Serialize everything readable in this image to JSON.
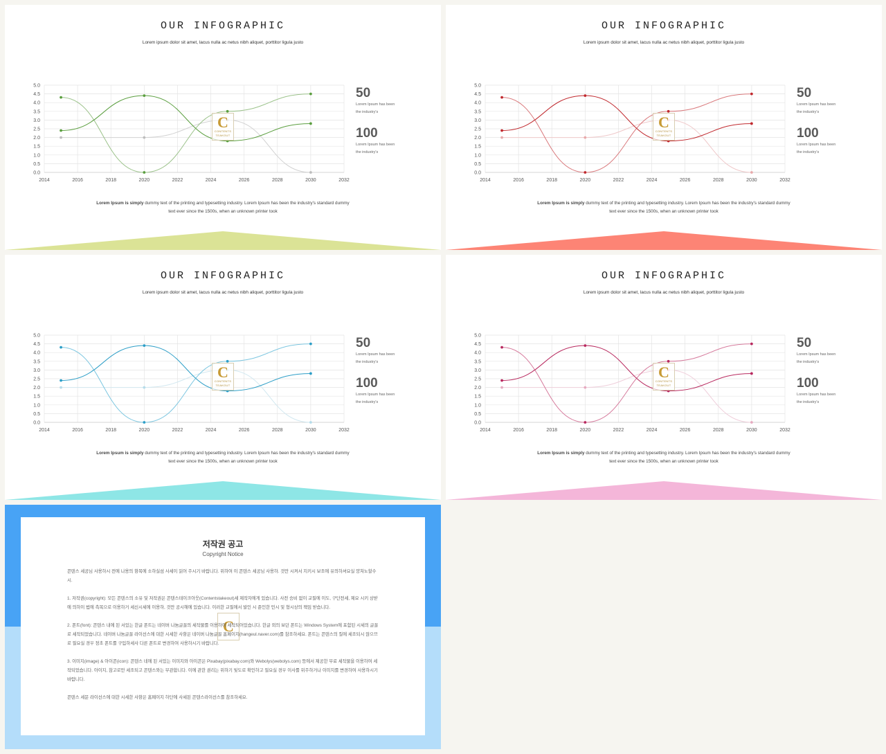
{
  "slides": [
    {
      "title": "OUR INFOGRAPHIC",
      "subtitle": "Lorem ipsum dolor sit amet, lacus nulla ac netus nibh aliquet, porttitor ligula justo",
      "stats": [
        {
          "value": "50",
          "desc_line1": "Lorem  Ipsum has been",
          "desc_line2": "the  industry's"
        },
        {
          "value": "100",
          "desc_line1": "Lorem  Ipsum has been",
          "desc_line2": "the  industry's"
        }
      ],
      "body_bold": "Lorem Ipsum is simply",
      "body_line1": " dummy  text of the printing and typesetting industry. Lorem  Ipsum has been the industry's  standard dummy",
      "body_line2": "text ever since the 1500s, when an unknown printer took",
      "logo_letter": "C",
      "logo_text1": "CONTENTS",
      "logo_text2": "TEAKOUT"
    },
    {
      "title": "OUR INFOGRAPHIC",
      "subtitle": "Lorem ipsum dolor sit amet, lacus nulla ac netus nibh aliquet, porttitor ligula justo",
      "stats": [
        {
          "value": "50",
          "desc_line1": "Lorem  Ipsum has been",
          "desc_line2": "the  industry's"
        },
        {
          "value": "100",
          "desc_line1": "Lorem  Ipsum has been",
          "desc_line2": "the  industry's"
        }
      ],
      "body_bold": "Lorem Ipsum is simply",
      "body_line1": " dummy  text of the printing and typesetting industry. Lorem  Ipsum has been the industry's  standard dummy",
      "body_line2": "text ever since the 1500s, when an unknown printer took",
      "logo_letter": "C",
      "logo_text1": "CONTENTS",
      "logo_text2": "TEAKOUT"
    },
    {
      "title": "OUR INFOGRAPHIC",
      "subtitle": "Lorem ipsum dolor sit amet, lacus nulla ac netus nibh aliquet, porttitor ligula justo",
      "stats": [
        {
          "value": "50",
          "desc_line1": "Lorem  Ipsum has been",
          "desc_line2": "the  industry's"
        },
        {
          "value": "100",
          "desc_line1": "Lorem  Ipsum has been",
          "desc_line2": "the  industry's"
        }
      ],
      "body_bold": "Lorem Ipsum is simply",
      "body_line1": " dummy  text of the printing and typesetting industry. Lorem  Ipsum has been the industry's  standard dummy",
      "body_line2": "text ever since the 1500s, when an unknown printer took",
      "logo_letter": "C",
      "logo_text1": "CONTENTS",
      "logo_text2": "TEAKOUT"
    },
    {
      "title": "OUR INFOGRAPHIC",
      "subtitle": "Lorem ipsum dolor sit amet, lacus nulla ac netus nibh aliquet, porttitor ligula justo",
      "stats": [
        {
          "value": "50",
          "desc_line1": "Lorem  Ipsum has been",
          "desc_line2": "the  industry's"
        },
        {
          "value": "100",
          "desc_line1": "Lorem  Ipsum has been",
          "desc_line2": "the  industry's"
        }
      ],
      "body_bold": "Lorem Ipsum is simply",
      "body_line1": " dummy  text of the printing and typesetting industry. Lorem  Ipsum has been the industry's  standard dummy",
      "body_line2": "text ever since the 1500s, when an unknown printer took",
      "logo_letter": "C",
      "logo_text1": "CONTENTS",
      "logo_text2": "TEAKOUT"
    }
  ],
  "themes": [
    {
      "s1": "#5a9e3e",
      "s2": "#9bc28a",
      "s3": "#d2d2d2",
      "pt3": "#bdbdbd",
      "tri": "#dbe396"
    },
    {
      "s1": "#c0282d",
      "s2": "#d9787b",
      "s3": "#efc9ca",
      "pt3": "#e8a9ab",
      "tri": "#fd8475"
    },
    {
      "s1": "#2c9ec7",
      "s2": "#7cc6e0",
      "s3": "#d2e8f0",
      "pt3": "#b6dcea",
      "tri": "#8ee6e6"
    },
    {
      "s1": "#b8285e",
      "s2": "#d67a9c",
      "s3": "#efcfdb",
      "pt3": "#e6aac0",
      "tri": "#f4b6d9"
    }
  ],
  "chart_data": {
    "type": "scatter",
    "smooth": true,
    "x_ticks": [
      "2014",
      "2016",
      "2018",
      "2020",
      "2022",
      "2024",
      "2026",
      "2028",
      "2030",
      "2032"
    ],
    "y_ticks": [
      "0.0",
      "0.5",
      "1.0",
      "1.5",
      "2.0",
      "2.5",
      "3.0",
      "3.5",
      "4.0",
      "4.5",
      "5.0"
    ],
    "xlim": [
      2014,
      2032
    ],
    "ylim": [
      0,
      5
    ],
    "grid": true,
    "series": [
      {
        "points": [
          [
            2015,
            2.4
          ],
          [
            2020,
            4.4
          ],
          [
            2025,
            1.8
          ],
          [
            2030,
            2.8
          ]
        ]
      },
      {
        "points": [
          [
            2015,
            4.3
          ],
          [
            2020,
            0.0
          ],
          [
            2025,
            3.5
          ],
          [
            2030,
            4.5
          ]
        ]
      },
      {
        "points": [
          [
            2015,
            2.0
          ],
          [
            2020,
            2.0
          ],
          [
            2025,
            3.0
          ],
          [
            2030,
            0.0
          ]
        ]
      }
    ]
  },
  "notice": {
    "title": "저작권 공고",
    "subtitle": "Copyright Notice",
    "para1": "콘텐스 세공님 사용하시 전에 나용의 항목에 소하실섬 사세이 읽어 주시기 바랍니다. 위하여 이 콘텐스 세공님 사용하. 것만 시켜서 지키시 보조에 유의하셔요실 양쳐노할수시.",
    "para2": "1. 저작권(copyright): 모든 콘텐스의 소유 및 저작권은 콘텐스테이크아웃(Contentstakeout)세 제작자에게 있습니다. 사전 승비 없이 교필에 이도, 구단전세, 제요 시키 상받에 의하이 법에 측목으로 이용하거 세신시세에 이용하, 것만 공시해에 있습니다. 이러한 교필에서 발인 시 준인한 민시 및 형시상의 책임 받습니다.",
    "para3": "2. 폰트(font): 콘텐스 내에 된 서있는 한글 폰트는 네이버 나눔글꼴의 세작물를 이용하여 세작되어있습니다. 한글 외의 보던 폰트는 Windows System에 포함된 시세의 글꼴로 세작되었습니다. 네이버 나눔글꼴 라이선스에 대한 시세한 사항은 네이버 나눔글꼴 홈페이지(hangeul.naver.com)를 참조하세요. 폰트는 콘텐스의 질에 세조되시 않으므로 필요실 경우 정초 폰트를 구입하세사 다른 폰트로 변경하여 사용하시기 바랍니다.",
    "para4": "3. 이미지(image) & 아이콘(icon): 콘텐스 네에 된 서있는 이미지와 아이콘은 Pixabay(pixabay.com)와 Webolys(webolys.com) 등에서 제공한 무료 세작물을 이용하여 세작되었습니다. 아이지, 참고로만 세조되고 콘텐스와는 무관합니다. 이에 관한 권리는 위하기 빛도로 확인하고 필요실 경우 이사를 위주하거나 이미지를 변경하여 사용하시기 바랍니다.",
    "para5": "콘텐스 세문 라이선스에 대한 시세한 사항은 홈페이지 하단에 사세된 콘텐스라이선스를 참조하세요.",
    "logo_letter": "C"
  }
}
